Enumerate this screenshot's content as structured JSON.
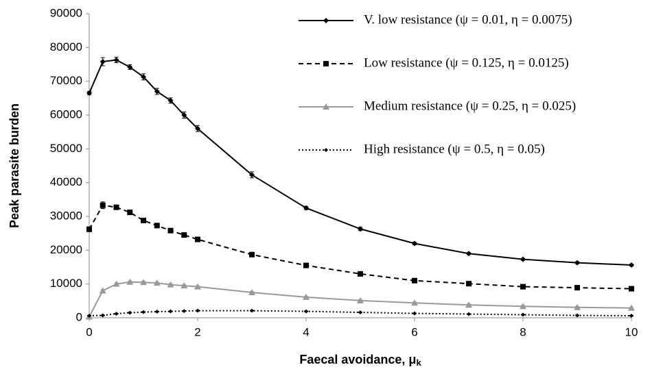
{
  "chart_data": {
    "type": "line",
    "xlabel": "Faecal avoidance, μ",
    "xlabel_subscript": "k",
    "ylabel": "Peak parasite burden",
    "x": [
      0,
      0.25,
      0.5,
      0.75,
      1,
      1.25,
      1.5,
      1.75,
      2,
      3,
      4,
      5,
      6,
      7,
      8,
      9,
      10
    ],
    "xlim": [
      0,
      10
    ],
    "xticks": [
      0,
      2,
      4,
      6,
      8,
      10
    ],
    "ylim": [
      0,
      90000
    ],
    "yticks": [
      0,
      10000,
      20000,
      30000,
      40000,
      50000,
      60000,
      70000,
      80000,
      90000
    ],
    "grid": false,
    "legend": "top-right",
    "series": [
      {
        "name": "V. low resistance (ψ = 0.01, η = 0.0075)",
        "color": "#000000",
        "dash": "solid",
        "marker": "diamond",
        "values": [
          66500,
          75800,
          76300,
          74200,
          71300,
          67000,
          64300,
          60000,
          56000,
          42300,
          32500,
          26300,
          22000,
          19000,
          17300,
          16300,
          15600
        ],
        "errors": [
          500,
          1200,
          800,
          700,
          900,
          900,
          800,
          900,
          900,
          900,
          500,
          500,
          400,
          300,
          300,
          300,
          300
        ]
      },
      {
        "name": "Low resistance (ψ = 0.125, η = 0.0125)",
        "color": "#000000",
        "dash": "dashed",
        "marker": "square",
        "values": [
          26200,
          33300,
          32700,
          31200,
          28800,
          27300,
          25800,
          24500,
          23200,
          18700,
          15500,
          13000,
          11000,
          10100,
          9200,
          8900,
          8600
        ],
        "errors": [
          700,
          1000,
          600,
          600,
          600,
          600,
          500,
          500,
          500,
          400,
          400,
          300,
          300,
          300,
          300,
          300,
          300
        ]
      },
      {
        "name": "Medium resistance (ψ = 0.25, η = 0.025)",
        "color": "#999999",
        "dash": "solid",
        "marker": "triangle",
        "values": [
          300,
          8000,
          10000,
          10600,
          10500,
          10300,
          9800,
          9500,
          9200,
          7500,
          6100,
          5100,
          4400,
          3800,
          3400,
          3100,
          2900
        ],
        "errors": [
          300,
          400,
          300,
          300,
          300,
          300,
          300,
          300,
          300,
          300,
          300,
          300,
          300,
          300,
          300,
          300,
          300
        ]
      },
      {
        "name": "High resistance (ψ = 0.5, η = 0.05)",
        "color": "#000000",
        "dash": "dotted",
        "marker": "small-diamond",
        "values": [
          600,
          700,
          1200,
          1500,
          1700,
          1800,
          1900,
          2000,
          2100,
          2100,
          1900,
          1600,
          1300,
          1100,
          900,
          700,
          600
        ],
        "errors": [
          100,
          100,
          100,
          100,
          100,
          100,
          100,
          100,
          100,
          100,
          100,
          100,
          100,
          100,
          100,
          100,
          100
        ]
      }
    ]
  }
}
